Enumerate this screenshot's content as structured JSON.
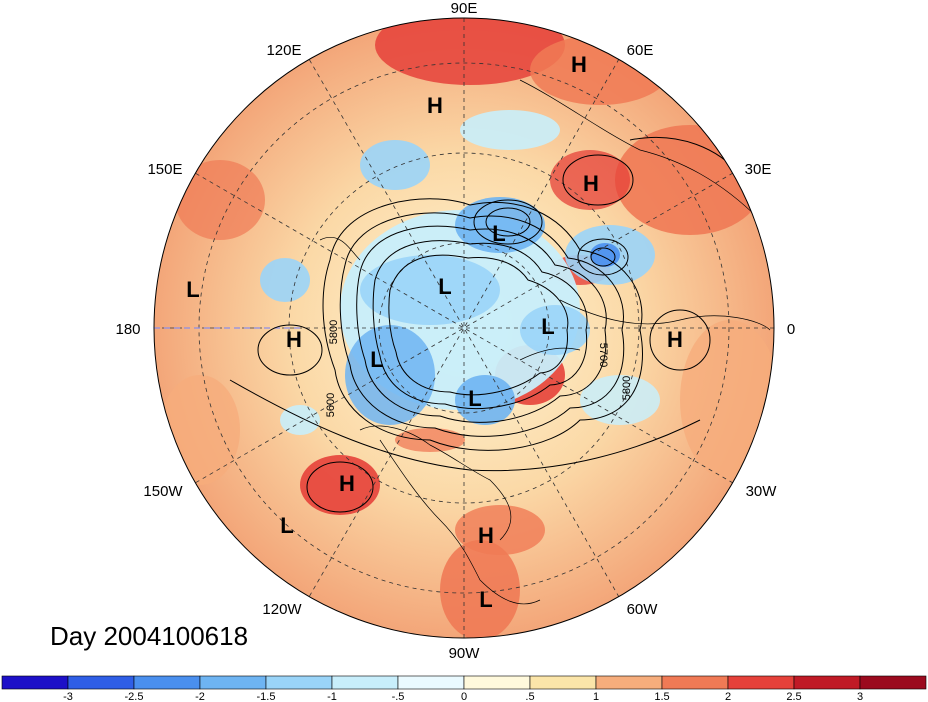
{
  "map": {
    "longitude_labels": [
      "90E",
      "60E",
      "30E",
      "0",
      "30W",
      "60W",
      "90W",
      "120W",
      "150W",
      "180",
      "150E",
      "120E"
    ],
    "pressure_centers": [
      {
        "type": "H",
        "label": "H"
      },
      {
        "type": "H",
        "label": "H"
      },
      {
        "type": "H",
        "label": "H"
      },
      {
        "type": "H",
        "label": "H"
      },
      {
        "type": "H",
        "label": "H"
      },
      {
        "type": "H",
        "label": "H"
      },
      {
        "type": "H",
        "label": "H"
      },
      {
        "type": "L",
        "label": "L"
      },
      {
        "type": "L",
        "label": "L"
      },
      {
        "type": "L",
        "label": "L"
      },
      {
        "type": "L",
        "label": "L"
      },
      {
        "type": "L",
        "label": "L"
      },
      {
        "type": "L",
        "label": "L"
      },
      {
        "type": "L",
        "label": "L"
      },
      {
        "type": "L",
        "label": "L"
      }
    ],
    "contour_labels": [
      "5800",
      "5600",
      "5700",
      "5800"
    ],
    "day_label": "Day 2004100618"
  },
  "colorbar": {
    "tick_labels": [
      "-3",
      "-2.5",
      "-2",
      "-1.5",
      "-1",
      "-.5",
      "0",
      ".5",
      "1",
      "1.5",
      "2",
      "2.5",
      "3"
    ],
    "colors": [
      "#1d10c8",
      "#2f5ee6",
      "#4a8fee",
      "#6eb4f2",
      "#9ad4f8",
      "#c8eefb",
      "#eafaff",
      "#fff9dc",
      "#fbe5a9",
      "#f6ad7c",
      "#f07a55",
      "#e5413a",
      "#c01a26",
      "#9b0a1e"
    ]
  }
}
